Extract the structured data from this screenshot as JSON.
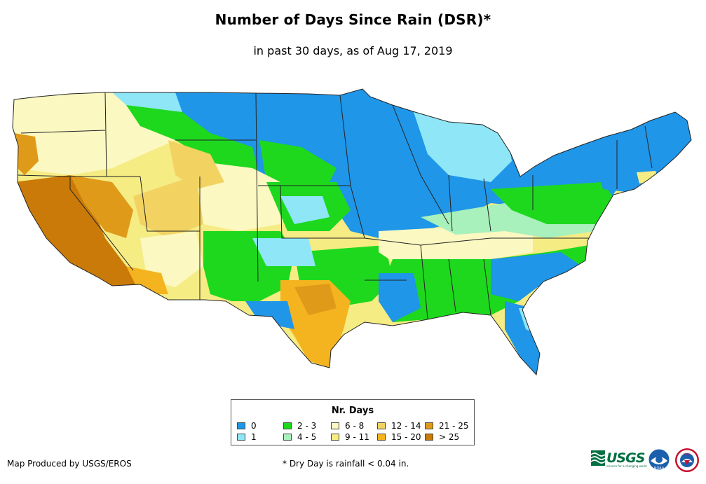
{
  "title": "Number of Days Since Rain (DSR)*",
  "subtitle": "in past 30 days, as of Aug 17, 2019",
  "legend": {
    "title": "Nr. Days",
    "items": [
      {
        "label": "0",
        "color": "#1f96e8"
      },
      {
        "label": "1",
        "color": "#8fe6f6"
      },
      {
        "label": "2 - 3",
        "color": "#1ed81e"
      },
      {
        "label": "4 - 5",
        "color": "#a8f0bc"
      },
      {
        "label": "6 - 8",
        "color": "#fcf8c2"
      },
      {
        "label": "9 - 11",
        "color": "#f6ec84"
      },
      {
        "label": "12 - 14",
        "color": "#f2d362"
      },
      {
        "label": "15 - 20",
        "color": "#f4b420"
      },
      {
        "label": "21 - 25",
        "color": "#e09a1a"
      },
      {
        "label": "> 25",
        "color": "#c97a08"
      }
    ]
  },
  "credit": "Map Produced by USGS/EROS",
  "footnote": "* Dry Day is rainfall < 0.04 in.",
  "logos": {
    "usgs_text": "USGS",
    "usgs_tagline": "science for a changing world",
    "noaa_text": "NOAA",
    "nws_text": "NWS"
  },
  "colors": {
    "usgs_green": "#006f41",
    "noaa_blue": "#1b5fad",
    "nws_red": "#c8102e"
  }
}
